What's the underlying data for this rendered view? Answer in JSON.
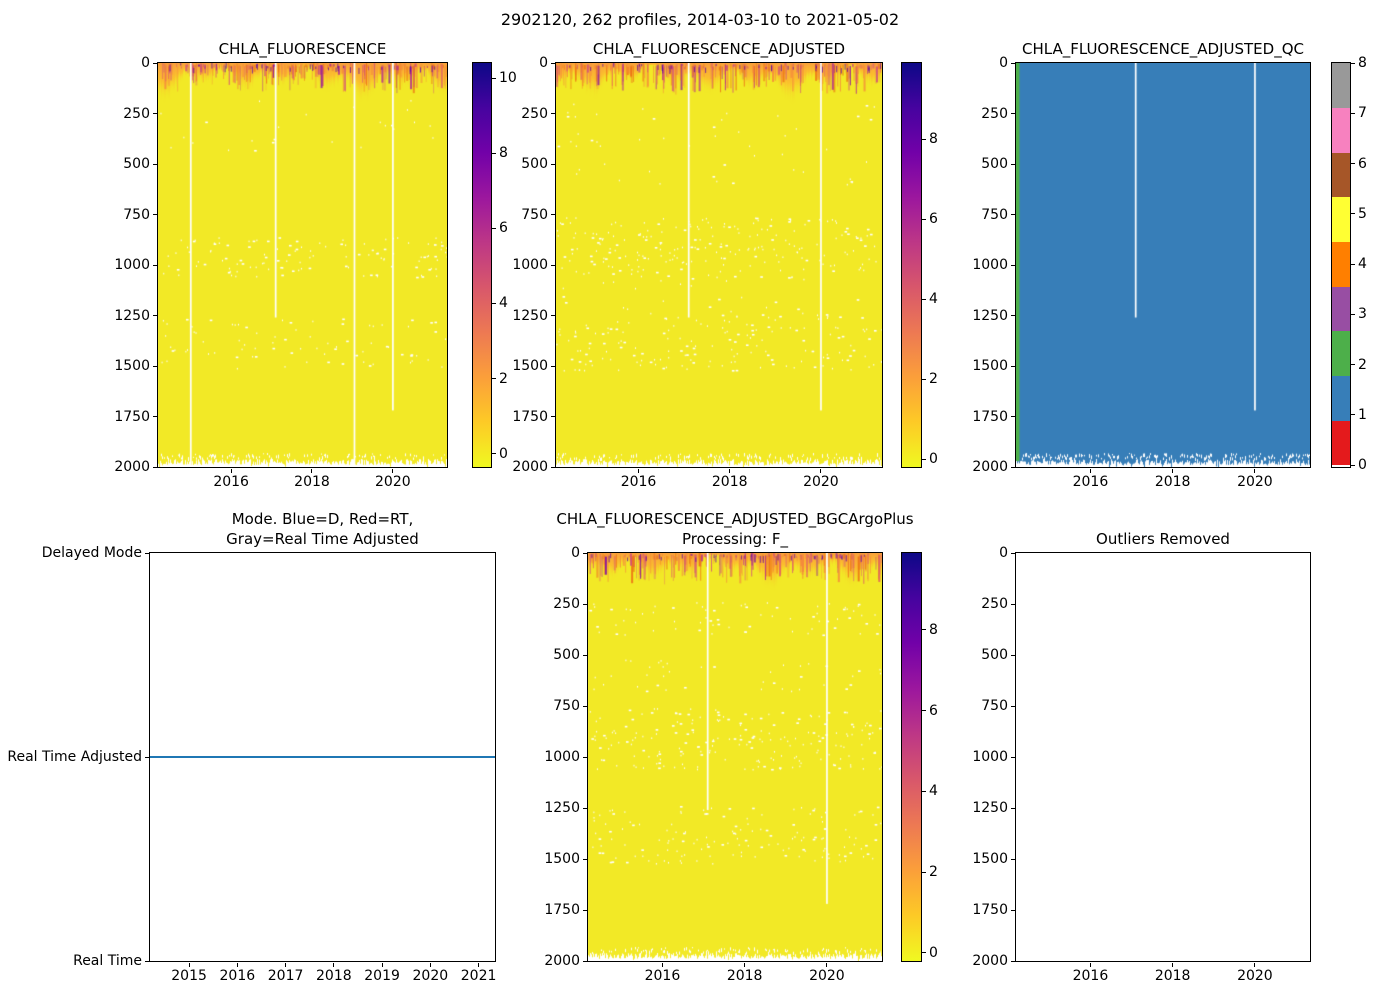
{
  "suptitle": "2902120, 262 profiles, 2014-03-10 to 2021-05-02",
  "colors": {
    "plasma_yellow": "#f2e926",
    "plasma_stops_top_to_bottom": [
      "#0d0887",
      "#46039f",
      "#7201a8",
      "#9c179e",
      "#bd3786",
      "#d8576b",
      "#ed7953",
      "#fb9f3a",
      "#fdca26",
      "#f0f921"
    ],
    "surface_band_orange": "#f9a03c",
    "surface_band_palette": [
      "#f58a3c",
      "#ec7014",
      "#e16462",
      "#d14a7e",
      "#b12a90",
      "#7e03a8"
    ],
    "deep_purple_dot": "#5c01a6",
    "qc_blue": "#377eb8",
    "qc_green": "#4daf4a",
    "mode_line_blue": "#1f77b4",
    "qc_colorbar_colors_0_to_8": [
      "#e41a1c",
      "#377eb8",
      "#4daf4a",
      "#984ea3",
      "#ff7f00",
      "#ffff33",
      "#a65628",
      "#f781bf",
      "#999999"
    ]
  },
  "chart_data": {
    "type": "heatmap",
    "description": "BGC-Argo float 2902120 CHLA fluorescence section plots: depth (0-2000 m) vs time (2014-03-10 to 2021-05-02), 262 profiles. Background ~0 (yellow, plasma_r colormap) with elevated values in top ~120 m. QC panel: nearly all flags = 1 (blue) with first profiles = 2 (green). Mode panel: constant Real Time Adjusted. Outliers Removed panel is empty.",
    "x_range_years": [
      2014.19,
      2021.34
    ],
    "depth_range_m": [
      0,
      2000
    ],
    "depth_ticks": [
      0,
      250,
      500,
      750,
      1000,
      1250,
      1500,
      1750,
      2000
    ],
    "year_ticks_heatmaps": [
      2016,
      2018,
      2020
    ],
    "year_ticks_mode_panel": [
      2015,
      2016,
      2017,
      2018,
      2019,
      2020,
      2021
    ],
    "panels": [
      {
        "title": "CHLA_FLUORESCENCE",
        "type": "heatmap",
        "style": "plasma",
        "wave_phase": 0.3,
        "surface_band_max_depth_m": 120,
        "colorbar": {
          "vmin": -0.3,
          "vmax": 10.4,
          "ticks": [
            0,
            2,
            4,
            6,
            8,
            10
          ]
        },
        "gap_lines": [
          {
            "year": 2015.0,
            "to_depth_m": 2000
          },
          {
            "year": 2017.1,
            "to_depth_m": 1260
          },
          {
            "year": 2019.05,
            "to_depth_m": 2000
          },
          {
            "year": 2020.0,
            "to_depth_m": 1720
          }
        ],
        "speckle_bands": [
          [
            0.43,
            0.53,
            120
          ],
          [
            0.63,
            0.76,
            80
          ],
          [
            0.08,
            0.22,
            25
          ]
        ]
      },
      {
        "title": "CHLA_FLUORESCENCE_ADJUSTED",
        "type": "heatmap",
        "style": "plasma",
        "wave_phase": 2.1,
        "surface_band_max_depth_m": 120,
        "colorbar": {
          "vmin": -0.15,
          "vmax": 9.9,
          "ticks": [
            0,
            2,
            4,
            6,
            8
          ]
        },
        "gap_lines": [
          {
            "year": 2017.1,
            "to_depth_m": 1260
          },
          {
            "year": 2020.0,
            "to_depth_m": 1720
          }
        ],
        "speckle_bands": [
          [
            0.38,
            0.53,
            220
          ],
          [
            0.62,
            0.76,
            170
          ],
          [
            0.1,
            0.3,
            50
          ],
          [
            0.53,
            0.62,
            25
          ]
        ]
      },
      {
        "title": "CHLA_FLUORESCENCE_ADJUSTED_QC",
        "type": "heatmap",
        "style": "qc",
        "dominant_qc_flag": 1,
        "left_edge_qc_flag": 2,
        "colorbar": {
          "vmin": 0,
          "vmax": 8,
          "ticks": [
            0,
            1,
            2,
            3,
            4,
            5,
            6,
            7,
            8
          ],
          "discrete": true
        },
        "gap_lines": [
          {
            "year": 2017.1,
            "to_depth_m": 1260
          },
          {
            "year": 2020.0,
            "to_depth_m": 1720
          }
        ]
      },
      {
        "title": "Mode. Blue=D, Red=RT,",
        "title2": "Gray=Real Time Adjusted",
        "type": "line",
        "y_categories": [
          "Delayed Mode",
          "Real Time Adjusted",
          "Real Time"
        ],
        "line_value": "Real Time Adjusted",
        "line_color_key": "mode_line_blue"
      },
      {
        "title": "CHLA_FLUORESCENCE_ADJUSTED_BGCArgoPlus",
        "title2": "Processing: F_",
        "type": "heatmap",
        "style": "plasma",
        "wave_phase": 4.0,
        "surface_band_max_depth_m": 120,
        "colorbar": {
          "vmin": -0.15,
          "vmax": 9.9,
          "ticks": [
            0,
            2,
            4,
            6,
            8
          ]
        },
        "gap_lines": [
          {
            "year": 2017.1,
            "to_depth_m": 1260
          },
          {
            "year": 2020.0,
            "to_depth_m": 1720
          }
        ],
        "speckle_bands": [
          [
            0.38,
            0.53,
            200
          ],
          [
            0.62,
            0.76,
            150
          ],
          [
            0.12,
            0.2,
            70
          ],
          [
            0.26,
            0.34,
            40
          ]
        ]
      },
      {
        "title": "Outliers Removed",
        "type": "empty"
      }
    ]
  }
}
